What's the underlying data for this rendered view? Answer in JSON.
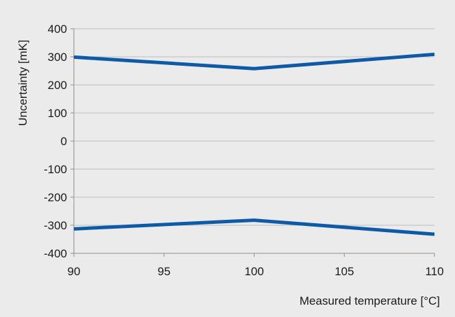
{
  "chart_data": {
    "type": "line",
    "xlabel": "Measured temperature [°C]",
    "ylabel": "Uncertainty [mK]",
    "xlim": [
      90,
      110
    ],
    "ylim": [
      -400,
      400
    ],
    "x_ticks": [
      90,
      95,
      100,
      105,
      110
    ],
    "y_ticks": [
      400,
      300,
      200,
      100,
      0,
      -100,
      -200,
      -300,
      -400
    ],
    "x_tick_labels": [
      "90",
      "95",
      "100",
      "105",
      "110"
    ],
    "y_tick_labels": [
      "400",
      "300",
      "200",
      "100",
      "0",
      "-100",
      "-200",
      "-300",
      "-400"
    ],
    "grid": "horizontal",
    "legend": "none",
    "series": [
      {
        "x": [
          90,
          100,
          110
        ],
        "values": [
          299,
          258,
          309
        ],
        "color": "#0f5aa6"
      },
      {
        "x": [
          90,
          100,
          110
        ],
        "values": [
          -313,
          -282,
          -332
        ],
        "color": "#0f5aa6"
      }
    ]
  },
  "colors": {
    "background": "#ebebeb",
    "grid": "#bdbdbd",
    "axis": "#8c8c8c",
    "series": "#0f5aa6"
  }
}
